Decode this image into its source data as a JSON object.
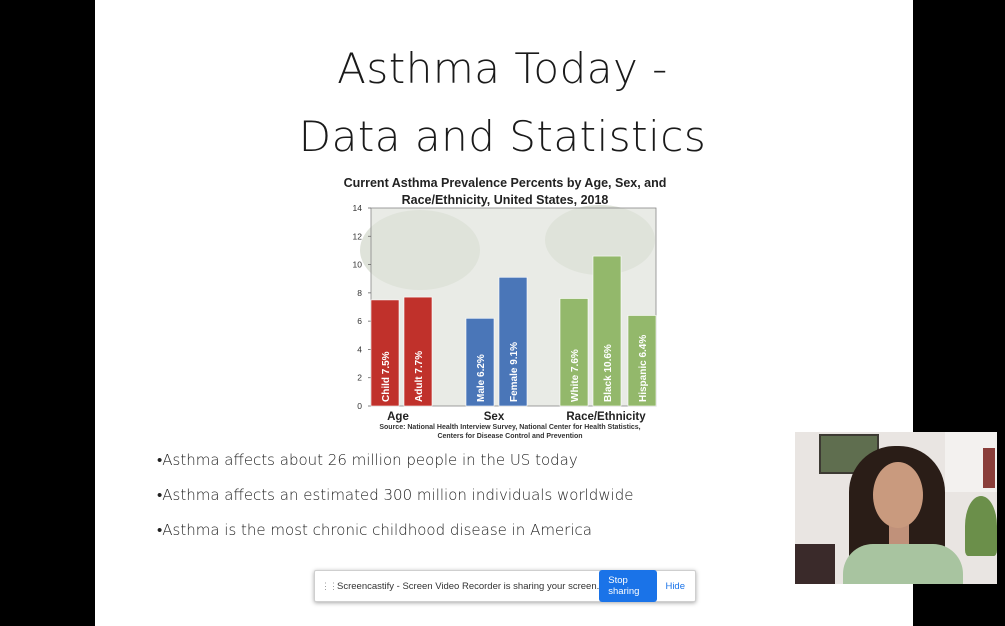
{
  "slide": {
    "title_line1": "Asthma Today -",
    "title_line2": "Data and Statistics",
    "bullets": [
      "•Asthma affects about 26 million people in the US today",
      "•Asthma affects an estimated 300 million individuals worldwide",
      "•Asthma is the most chronic childhood disease in America"
    ]
  },
  "chart_data": {
    "type": "bar",
    "title_line1": "Current Asthma Prevalence Percents by Age, Sex, and",
    "title_line2": "Race/Ethnicity, United States, 2018",
    "ylim": [
      0,
      14
    ],
    "yticks": [
      0,
      2,
      4,
      6,
      8,
      10,
      12,
      14
    ],
    "grid": false,
    "groups": [
      "Age",
      "Sex",
      "Race/Ethnicity"
    ],
    "bars": [
      {
        "label": "Child  7.5%",
        "value": 7.5,
        "group": "Age",
        "color": "#c0312b"
      },
      {
        "label": "Adult  7.7%",
        "value": 7.7,
        "group": "Age",
        "color": "#c0312b"
      },
      {
        "label": "Male  6.2%",
        "value": 6.2,
        "group": "Sex",
        "color": "#4a76b8"
      },
      {
        "label": "Female  9.1%",
        "value": 9.1,
        "group": "Sex",
        "color": "#4a76b8"
      },
      {
        "label": "White  7.6%",
        "value": 7.6,
        "group": "Race/Ethnicity",
        "color": "#93b86b"
      },
      {
        "label": "Black  10.6%",
        "value": 10.6,
        "group": "Race/Ethnicity",
        "color": "#93b86b"
      },
      {
        "label": "Hispanic  6.4%",
        "value": 6.4,
        "group": "Race/Ethnicity",
        "color": "#93b86b"
      }
    ],
    "source_line1": "Source: National Health Interview Survey, National Center for Health Statistics,",
    "source_line2": "Centers for Disease Control and Prevention"
  },
  "share_bar": {
    "message": "Screencastify - Screen Video Recorder is sharing your screen.",
    "stop_label": "Stop sharing",
    "hide_label": "Hide"
  }
}
